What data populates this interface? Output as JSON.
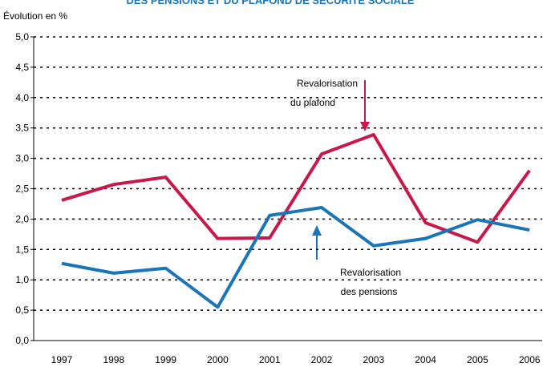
{
  "chart_data": {
    "type": "line",
    "title": "DES PENSIONS ET DU PLAFOND DE SÉCURITÉ SOCIALE",
    "y_label": "Évolution en %",
    "categories": [
      "1997",
      "1998",
      "1999",
      "2000",
      "2001",
      "2002",
      "2003",
      "2004",
      "2005",
      "2006"
    ],
    "series": [
      {
        "name": "Revalorisation du plafond",
        "color": "#c8174a",
        "values": [
          2.31,
          2.57,
          2.69,
          1.68,
          1.69,
          3.07,
          3.39,
          1.94,
          1.62,
          2.8
        ]
      },
      {
        "name": "Revalorisation des pensions",
        "color": "#1a75b8",
        "values": [
          1.27,
          1.11,
          1.19,
          0.55,
          2.06,
          2.19,
          1.56,
          1.68,
          1.99,
          1.82
        ]
      }
    ],
    "annotations": [
      [
        "Revalorisation",
        "du plafond"
      ],
      [
        "Revalorisation",
        "des pensions"
      ]
    ],
    "ylim": [
      0,
      5
    ],
    "yticks": [
      {
        "value": 0,
        "label": "0,0"
      },
      {
        "value": 0.5,
        "label": "0,5"
      },
      {
        "value": 1,
        "label": "1,0"
      },
      {
        "value": 1.5,
        "label": "1,5"
      },
      {
        "value": 2,
        "label": "2,0"
      },
      {
        "value": 2.5,
        "label": "2,5"
      },
      {
        "value": 3,
        "label": "3,0"
      },
      {
        "value": 3.5,
        "label": "3,5"
      },
      {
        "value": 4,
        "label": "4,0"
      },
      {
        "value": 4.5,
        "label": "4,5"
      },
      {
        "value": 5,
        "label": "5,0"
      }
    ],
    "grid": true
  }
}
